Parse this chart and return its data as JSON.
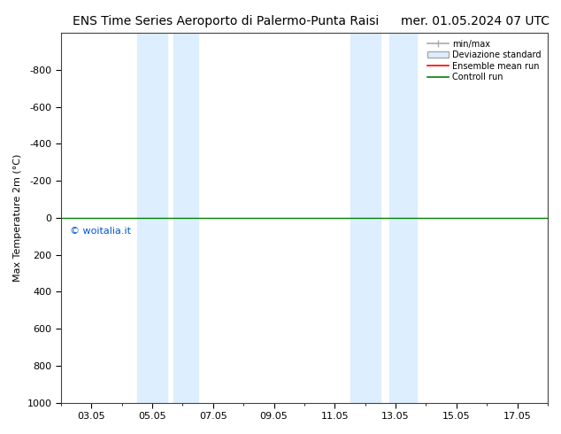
{
  "title_left": "ENS Time Series Aeroporto di Palermo-Punta Raisi",
  "title_right": "mer. 01.05.2024 07 UTC",
  "ylabel": "Max Temperature 2m (°C)",
  "ylim_top": -1000,
  "ylim_bottom": 1000,
  "yticks": [
    -800,
    -600,
    -400,
    -200,
    0,
    200,
    400,
    600,
    800,
    1000
  ],
  "xtick_labels": [
    "03.05",
    "05.05",
    "07.05",
    "09.05",
    "11.05",
    "13.05",
    "15.05",
    "17.05"
  ],
  "xtick_positions": [
    2,
    4,
    6,
    8,
    10,
    12,
    14,
    16
  ],
  "xlim": [
    1,
    17
  ],
  "shaded_regions": [
    [
      3.5,
      4.5
    ],
    [
      4.7,
      5.5
    ],
    [
      10.5,
      11.5
    ],
    [
      11.8,
      12.7
    ]
  ],
  "shade_color": "#ddeeff",
  "horizontal_line_y": 0,
  "control_run_color": "#008000",
  "ensemble_mean_color": "#ff0000",
  "minmax_color": "#aaaaaa",
  "copyright_text": "© woitalia.it",
  "copyright_color": "#0055cc",
  "copyright_x": 1.3,
  "copyright_y": 50,
  "legend_labels": [
    "min/max",
    "Deviazione standard",
    "Ensemble mean run",
    "Controll run"
  ],
  "title_fontsize": 10,
  "axis_fontsize": 8,
  "tick_fontsize": 8,
  "background_color": "#ffffff",
  "plot_bg_color": "#ffffff"
}
